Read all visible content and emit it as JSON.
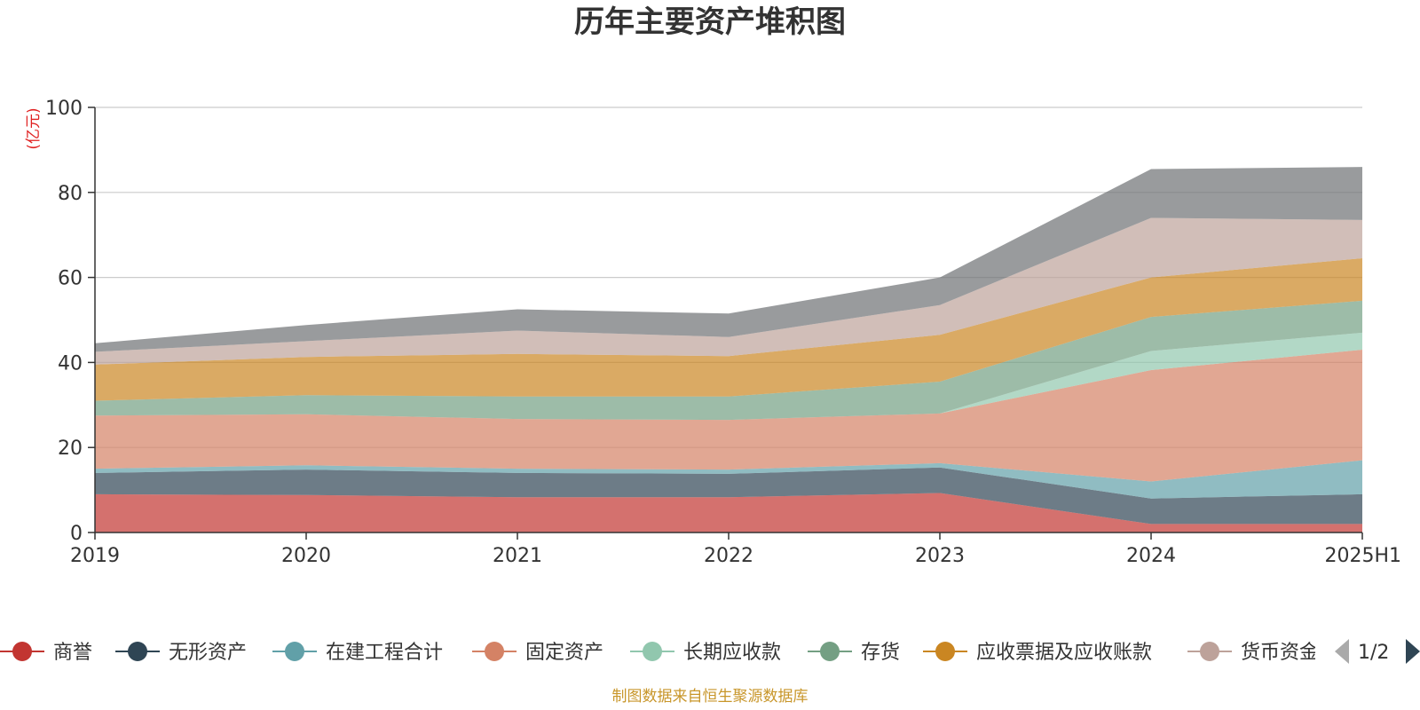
{
  "chart_data": {
    "type": "area",
    "stacked": true,
    "title": "历年主要资产堆积图",
    "unit_label": "(亿元)",
    "x": [
      "2019",
      "2020",
      "2021",
      "2022",
      "2023",
      "2024",
      "2025H1"
    ],
    "ylim": [
      0,
      100
    ],
    "yticks": [
      "0",
      "20",
      "40",
      "60",
      "80",
      "100"
    ],
    "grid": true,
    "legend_position": "bottom",
    "series": [
      {
        "name": "商誉",
        "color": "#c23531",
        "values": [
          9.0,
          8.8,
          8.3,
          8.3,
          9.3,
          2.0,
          2.0
        ]
      },
      {
        "name": "无形资产",
        "color": "#2f4554",
        "values": [
          5.0,
          6.0,
          5.7,
          5.5,
          6.0,
          6.0,
          7.0
        ]
      },
      {
        "name": "在建工程合计",
        "color": "#61a0a8",
        "values": [
          1.0,
          1.0,
          1.0,
          1.0,
          1.0,
          4.0,
          8.0
        ]
      },
      {
        "name": "固定资产",
        "color": "#d48265",
        "values": [
          12.5,
          12.0,
          11.7,
          11.7,
          11.7,
          26.2,
          26.0
        ]
      },
      {
        "name": "长期应收款",
        "color": "#91c7ae",
        "values": [
          0.0,
          0.0,
          0.0,
          0.0,
          0.0,
          4.5,
          4.0
        ]
      },
      {
        "name": "存货",
        "color": "#749f83",
        "values": [
          3.5,
          4.5,
          5.3,
          5.5,
          7.5,
          8.0,
          7.5
        ]
      },
      {
        "name": "应收票据及应收账款",
        "color": "#ca8622",
        "values": [
          8.5,
          9.0,
          10.0,
          9.5,
          11.0,
          9.3,
          10.0
        ]
      },
      {
        "name": "货币资金",
        "color": "#bda29a",
        "values": [
          3.0,
          3.7,
          5.5,
          4.5,
          7.0,
          14.0,
          9.0
        ]
      },
      {
        "name": "",
        "color": "#6e7074",
        "values": [
          2.0,
          3.8,
          5.0,
          5.5,
          6.5,
          11.5,
          12.5
        ]
      }
    ],
    "legend_labels": [
      "商誉",
      "无形资产",
      "在建工程合计",
      "固定资产",
      "长期应收款",
      "存货",
      "应收票据及应收账款",
      "货币资金"
    ]
  },
  "pager": {
    "text": "1/2"
  },
  "source": "制图数据来自恒生聚源数据库"
}
